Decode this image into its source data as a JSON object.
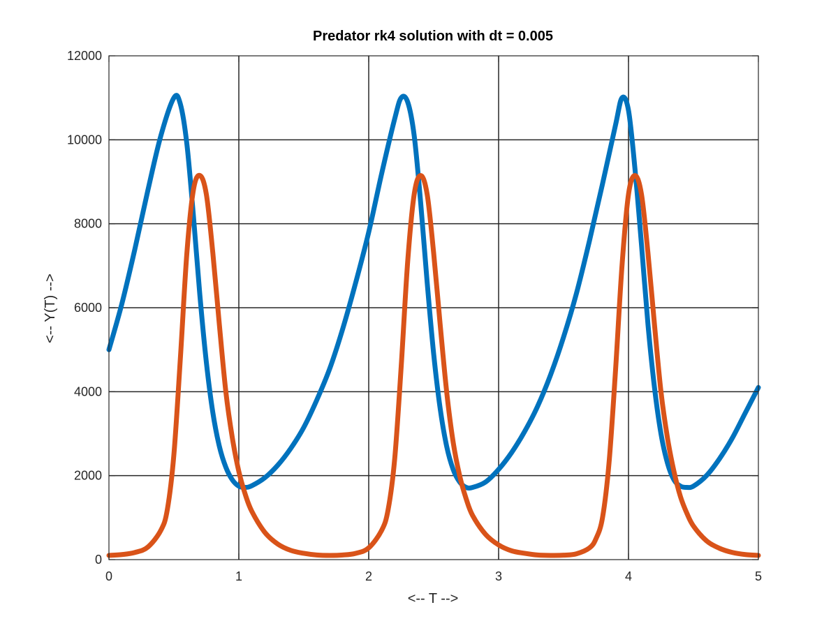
{
  "chart_data": {
    "type": "line",
    "title": "Predator rk4 solution with dt = 0.005",
    "xlabel": "<-- T -->",
    "ylabel": "<-- Y(T) -->",
    "xlim": [
      0,
      5
    ],
    "ylim": [
      0,
      12000
    ],
    "xticks": [
      0,
      1,
      2,
      3,
      4,
      5
    ],
    "yticks": [
      0,
      2000,
      4000,
      6000,
      8000,
      10000,
      12000
    ],
    "xtick_labels": [
      "0",
      "1",
      "2",
      "3",
      "4",
      "5"
    ],
    "ytick_labels": [
      "0",
      "2000",
      "4000",
      "6000",
      "8000",
      "10000",
      "12000"
    ],
    "grid": true,
    "legend": "none",
    "series": [
      {
        "color": "#0072BD",
        "x": [
          0,
          0.1,
          0.2,
          0.3,
          0.4,
          0.5,
          0.55,
          0.6,
          0.65,
          0.7,
          0.75,
          0.8,
          0.85,
          0.9,
          0.95,
          1.0,
          1.05,
          1.1,
          1.2,
          1.3,
          1.4,
          1.5,
          1.6,
          1.7,
          1.8,
          1.9,
          2.0,
          2.1,
          2.2,
          2.25,
          2.3,
          2.35,
          2.4,
          2.45,
          2.5,
          2.55,
          2.6,
          2.65,
          2.7,
          2.75,
          2.8,
          2.9,
          3.0,
          3.1,
          3.2,
          3.3,
          3.4,
          3.5,
          3.6,
          3.7,
          3.8,
          3.9,
          3.95,
          4.0,
          4.05,
          4.1,
          4.15,
          4.2,
          4.25,
          4.3,
          4.35,
          4.4,
          4.45,
          4.5,
          4.6,
          4.7,
          4.8,
          4.9,
          5.0
        ],
        "y": [
          5000,
          6100,
          7400,
          8800,
          10100,
          11000,
          10850,
          9900,
          8200,
          6300,
          4700,
          3500,
          2700,
          2200,
          1900,
          1750,
          1720,
          1760,
          1950,
          2250,
          2650,
          3150,
          3800,
          4550,
          5500,
          6600,
          7800,
          9200,
          10500,
          11000,
          10900,
          10100,
          8500,
          6600,
          4900,
          3600,
          2700,
          2150,
          1850,
          1720,
          1720,
          1850,
          2150,
          2550,
          3050,
          3650,
          4400,
          5300,
          6350,
          7600,
          8950,
          10350,
          11000,
          10700,
          9300,
          7500,
          5600,
          4100,
          3000,
          2300,
          1900,
          1750,
          1720,
          1750,
          2000,
          2400,
          2900,
          3500,
          4100
        ]
      },
      {
        "color": "#D95319",
        "x": [
          0,
          0.1,
          0.2,
          0.3,
          0.4,
          0.45,
          0.5,
          0.55,
          0.6,
          0.65,
          0.7,
          0.75,
          0.8,
          0.85,
          0.9,
          0.95,
          1.0,
          1.05,
          1.1,
          1.2,
          1.3,
          1.4,
          1.5,
          1.6,
          1.7,
          1.8,
          1.9,
          2.0,
          2.1,
          2.15,
          2.2,
          2.25,
          2.3,
          2.35,
          2.4,
          2.45,
          2.5,
          2.55,
          2.6,
          2.65,
          2.7,
          2.75,
          2.8,
          2.9,
          3.0,
          3.1,
          3.2,
          3.3,
          3.4,
          3.5,
          3.6,
          3.7,
          3.75,
          3.8,
          3.85,
          3.9,
          3.95,
          4.0,
          4.05,
          4.1,
          4.15,
          4.2,
          4.25,
          4.3,
          4.35,
          4.4,
          4.45,
          4.5,
          4.6,
          4.7,
          4.8,
          4.9,
          5.0
        ],
        "y": [
          100,
          120,
          170,
          300,
          700,
          1200,
          2500,
          4800,
          7300,
          8800,
          9150,
          8700,
          7300,
          5600,
          4000,
          2900,
          2100,
          1550,
          1150,
          650,
          370,
          220,
          150,
          110,
          100,
          110,
          150,
          280,
          700,
          1200,
          2400,
          4600,
          7100,
          8700,
          9150,
          8700,
          7300,
          5600,
          4000,
          2800,
          2000,
          1450,
          1050,
          600,
          350,
          210,
          150,
          110,
          100,
          105,
          140,
          280,
          500,
          1000,
          2300,
          4500,
          7000,
          8700,
          9150,
          8700,
          7300,
          5600,
          4000,
          2900,
          2100,
          1500,
          1100,
          800,
          450,
          270,
          170,
          120,
          100
        ]
      }
    ]
  }
}
